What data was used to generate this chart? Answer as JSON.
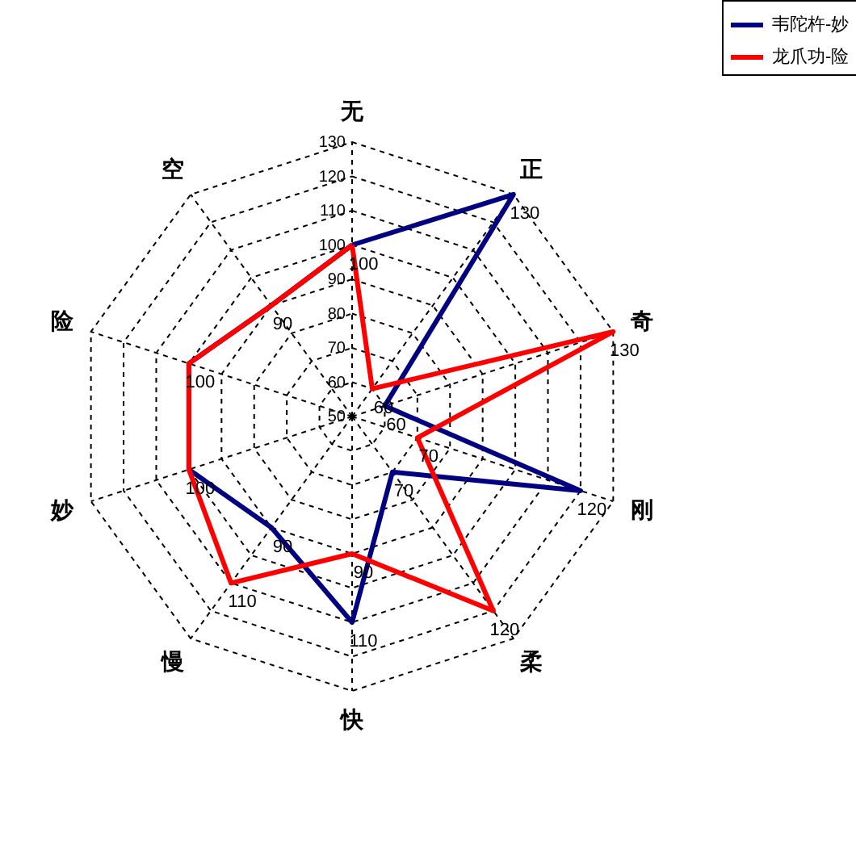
{
  "chart_data": {
    "type": "radar",
    "categories": [
      "无",
      "正",
      "奇",
      "刚",
      "柔",
      "快",
      "慢",
      "妙",
      "险",
      "空"
    ],
    "series": [
      {
        "name": "韦陀杵-妙",
        "color": "#000080",
        "values": [
          100,
          130,
          60,
          120,
          70,
          110,
          90,
          100,
          100,
          90
        ],
        "value_labels": [
          "100",
          "130",
          "60",
          "120",
          "70",
          "110",
          "90",
          "100",
          "100",
          "90"
        ]
      },
      {
        "name": "龙爪功-险",
        "color": "#ff0000",
        "values": [
          100,
          60,
          130,
          70,
          120,
          90,
          110,
          100,
          100,
          90
        ],
        "value_labels": [
          null,
          "60",
          "130",
          "70",
          "120",
          "90",
          "110",
          null,
          null,
          null
        ]
      }
    ],
    "ylim": [
      50,
      130
    ],
    "yticks": [
      50,
      60,
      70,
      80,
      90,
      100,
      110,
      120,
      130
    ],
    "grid": true,
    "legend": "top right",
    "line_style": "solid"
  }
}
